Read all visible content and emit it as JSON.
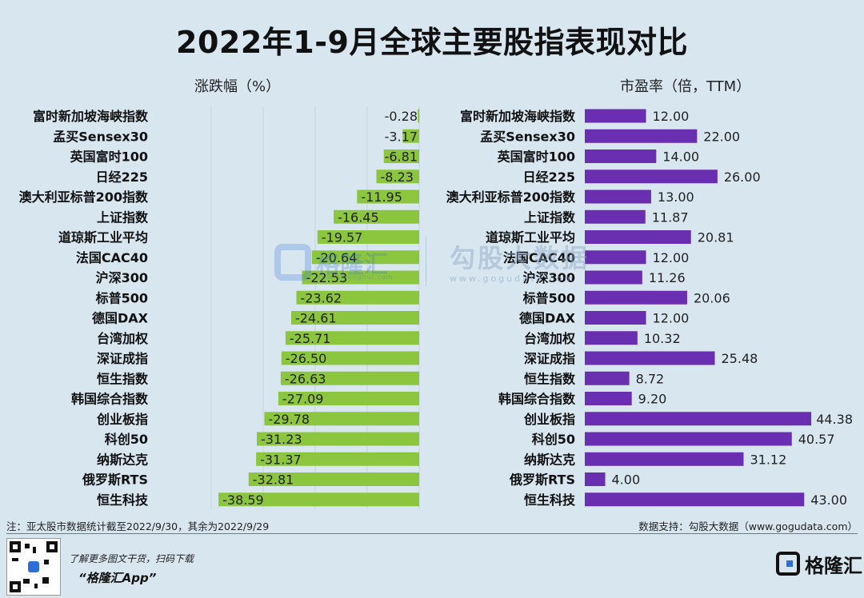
{
  "title": "2022年1-9月全球主要股指表现对比",
  "chart_data": [
    {
      "type": "bar",
      "orientation": "horizontal",
      "title": "涨跌幅（%）",
      "categories": [
        "富时新加坡海峡指数",
        "孟买Sensex30",
        "英国富时100",
        "日经225",
        "澳大利亚标普200指数",
        "上证指数",
        "道琼斯工业平均",
        "法国CAC40",
        "沪深300",
        "标普500",
        "德国DAX",
        "台湾加权",
        "深证成指",
        "恒生指数",
        "韩国综合指数",
        "创业板指",
        "科创50",
        "纳斯达克",
        "俄罗斯RTS",
        "恒生科技"
      ],
      "values": [
        -0.28,
        -3.17,
        -6.81,
        -8.23,
        -11.95,
        -16.45,
        -19.57,
        -20.64,
        -22.53,
        -23.62,
        -24.61,
        -25.71,
        -26.5,
        -26.63,
        -27.09,
        -29.78,
        -31.23,
        -31.37,
        -32.81,
        -38.59
      ],
      "labels": [
        "-0.28",
        "-3.17",
        "-6.81",
        "-8.23",
        "-11.95",
        "-16.45",
        "-19.57",
        "-20.64",
        "-22.53",
        "-23.62",
        "-24.61",
        "-25.71",
        "-26.50",
        "-26.63",
        "-27.09",
        "-29.78",
        "-31.23",
        "-31.37",
        "-32.81",
        "-38.59"
      ],
      "color": "#8cc63f",
      "xlim": [
        -40,
        0
      ],
      "grid": true
    },
    {
      "type": "bar",
      "orientation": "horizontal",
      "title": "市盈率（倍，TTM）",
      "categories": [
        "富时新加坡海峡指数",
        "孟买Sensex30",
        "英国富时100",
        "日经225",
        "澳大利亚标普200指数",
        "上证指数",
        "道琼斯工业平均",
        "法国CAC40",
        "沪深300",
        "标普500",
        "德国DAX",
        "台湾加权",
        "深证成指",
        "恒生指数",
        "韩国综合指数",
        "创业板指",
        "科创50",
        "纳斯达克",
        "俄罗斯RTS",
        "恒生科技"
      ],
      "values": [
        12.0,
        22.0,
        14.0,
        26.0,
        13.0,
        11.87,
        20.81,
        12.0,
        11.26,
        20.06,
        12.0,
        10.32,
        25.48,
        8.72,
        9.2,
        44.38,
        40.57,
        31.12,
        4.0,
        43.0
      ],
      "labels": [
        "12.00",
        "22.00",
        "14.00",
        "26.00",
        "13.00",
        "11.87",
        "20.81",
        "12.00",
        "11.26",
        "20.06",
        "12.00",
        "10.32",
        "25.48",
        "8.72",
        "9.20",
        "44.38",
        "40.57",
        "31.12",
        "4.00",
        "43.00"
      ],
      "color": "#6a2fb0",
      "xlim": [
        0,
        45
      ]
    }
  ],
  "footer": {
    "note": "注：亚太股市数据统计截至2022/9/30，其余为2022/9/29",
    "source": "数据支持：勾股大数据（www.gogudata.com）",
    "promo": "了解更多图文干货，扫码下载",
    "app": "“格隆汇App”",
    "brand": "格隆汇"
  },
  "watermark": {
    "left_text": "格隆汇",
    "left_sub": "www.gelonghui.com",
    "right_text": "勾股大数据",
    "right_sub": "www.gogudata.com"
  }
}
